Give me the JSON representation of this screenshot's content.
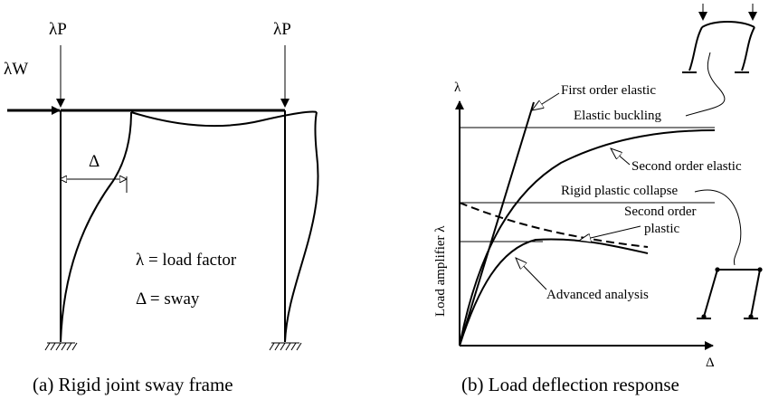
{
  "panel_a": {
    "load_left": "λP",
    "load_right": "λP",
    "lateral_load": "λW",
    "sway_symbol": "Δ",
    "legend_lambda": "λ = load factor",
    "legend_delta": "Δ = sway",
    "caption": "(a) Rigid joint sway frame"
  },
  "panel_b": {
    "y_axis_symbol": "λ",
    "y_axis_label": "Load amplifier λ",
    "x_axis_symbol": "Δ",
    "curve_labels": {
      "first_order_elastic": "First order elastic",
      "elastic_buckling": "Elastic buckling",
      "second_order_elastic": "Second order elastic",
      "rigid_plastic_collapse": "Rigid plastic collapse",
      "second_order_plastic_line1": "Second order",
      "second_order_plastic_line2": "plastic",
      "advanced_analysis": "Advanced analysis"
    },
    "caption": "(b) Load deflection response"
  }
}
